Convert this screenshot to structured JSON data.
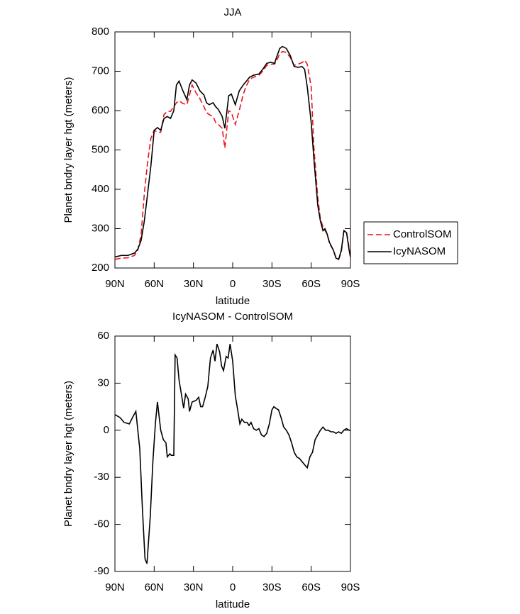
{
  "chart_data": [
    {
      "type": "line",
      "title": "JJA",
      "x_label": "latitude",
      "y_label": "Planet bndry layer hgt (meters)",
      "x": [
        90,
        85,
        80,
        75,
        72.5,
        70,
        67.5,
        65,
        62.5,
        60,
        57.5,
        55,
        52.5,
        50,
        47.5,
        45,
        43,
        41,
        38,
        35,
        33,
        31,
        28,
        25,
        22,
        20,
        18,
        15,
        13,
        11,
        8,
        6,
        3,
        1,
        -2,
        -5,
        -8,
        -10,
        -13,
        -16,
        -20,
        -23,
        -26,
        -29,
        -32,
        -34,
        -36,
        -38,
        -41,
        -44,
        -47,
        -50,
        -53,
        -55,
        -57,
        -60,
        -62,
        -65,
        -67,
        -69,
        -70.5,
        -72,
        -74,
        -77,
        -79,
        -81,
        -83,
        -85,
        -87,
        -89,
        -90
      ],
      "series": [
        {
          "name": "ControlSOM",
          "color": "#e8141b",
          "line_style": "dashed",
          "values": [
            222,
            225,
            226,
            232,
            245,
            285,
            390,
            470,
            530,
            550,
            545,
            545,
            590,
            598,
            598,
            610,
            620,
            625,
            618,
            615,
            640,
            665,
            645,
            630,
            610,
            595,
            590,
            585,
            570,
            565,
            555,
            505,
            600,
            595,
            565,
            600,
            640,
            660,
            680,
            685,
            690,
            700,
            715,
            718,
            718,
            730,
            745,
            750,
            748,
            735,
            715,
            718,
            722,
            728,
            718,
            660,
            510,
            380,
            325,
            305,
            295,
            288,
            262,
            245,
            224,
            222,
            240,
            295,
            292,
            250,
            222
          ]
        },
        {
          "name": "IcyNASOM",
          "color": "#000000",
          "line_style": "solid",
          "values": [
            228,
            232,
            232,
            238,
            248,
            270,
            320,
            390,
            460,
            550,
            557,
            550,
            580,
            585,
            580,
            600,
            665,
            675,
            650,
            628,
            665,
            678,
            670,
            650,
            640,
            620,
            615,
            620,
            610,
            603,
            585,
            555,
            638,
            642,
            615,
            650,
            665,
            673,
            685,
            690,
            693,
            705,
            720,
            723,
            720,
            740,
            758,
            763,
            758,
            740,
            712,
            710,
            712,
            705,
            660,
            570,
            480,
            360,
            320,
            295,
            300,
            288,
            265,
            245,
            225,
            222,
            245,
            295,
            290,
            245,
            228
          ]
        }
      ],
      "xlim": [
        90,
        -90
      ],
      "xticks": [
        {
          "value": 90,
          "label": "90N"
        },
        {
          "value": 60,
          "label": "60N"
        },
        {
          "value": 30,
          "label": "30N"
        },
        0,
        {
          "value": -30,
          "label": "30S"
        },
        {
          "value": -60,
          "label": "60S"
        },
        {
          "value": -90,
          "label": "90S"
        }
      ],
      "ylim": [
        200,
        800
      ],
      "yticks": [
        200,
        300,
        400,
        500,
        600,
        700,
        800
      ],
      "legend": "right"
    },
    {
      "type": "line",
      "title": "IcyNASOM - ControlSOM",
      "x_label": "latitude",
      "y_label": "Planet bndry layer hgt (meters)",
      "x": [
        90,
        86,
        83,
        79,
        76,
        74,
        71,
        69,
        67,
        65.5,
        63,
        61,
        59,
        57.5,
        55,
        53,
        51,
        50,
        48,
        47,
        45,
        44,
        42.5,
        41,
        39,
        37.5,
        36,
        34,
        33,
        31,
        28,
        26,
        24.5,
        23,
        21,
        19,
        17,
        15,
        13.5,
        12,
        10,
        8.5,
        7,
        5,
        3.5,
        2,
        0,
        -2,
        -4,
        -5.5,
        -7,
        -9,
        -11,
        -12.5,
        -14,
        -16,
        -18,
        -20,
        -22,
        -24,
        -26,
        -28,
        -30,
        -31.5,
        -33,
        -35,
        -37,
        -39,
        -41,
        -43,
        -45,
        -47,
        -49,
        -51,
        -53,
        -55,
        -57,
        -59,
        -61,
        -63,
        -65,
        -67,
        -69,
        -71,
        -73,
        -75,
        -77,
        -79,
        -81,
        -83,
        -85,
        -87,
        -89,
        -90
      ],
      "series": [
        {
          "color": "#000000",
          "line_style": "solid",
          "values": [
            10,
            8,
            5,
            4,
            9,
            12,
            -12,
            -50,
            -82,
            -85,
            -55,
            -20,
            5,
            18,
            0,
            -6,
            -8,
            -17,
            -15,
            -16,
            -16,
            48,
            46,
            32,
            22,
            14,
            23,
            20,
            12,
            18,
            19,
            21,
            15,
            15,
            21,
            28,
            46,
            51,
            44,
            55,
            50,
            41,
            38,
            47,
            46,
            55,
            44,
            22,
            12,
            4,
            7,
            5,
            5,
            3,
            5,
            1,
            0,
            1,
            -3,
            -4,
            -2,
            4,
            13,
            15,
            14,
            13,
            8,
            2,
            0,
            -3,
            -8,
            -14,
            -17,
            -18,
            -20,
            -22,
            -24,
            -17,
            -14,
            -6,
            -3,
            0,
            2,
            0,
            0,
            -1,
            -1,
            -2,
            -1,
            -2,
            0,
            1,
            0,
            0
          ]
        }
      ],
      "xlim": [
        90,
        -90
      ],
      "xticks": [
        {
          "value": 90,
          "label": "90N"
        },
        {
          "value": 60,
          "label": "60N"
        },
        {
          "value": 30,
          "label": "30N"
        },
        0,
        {
          "value": -30,
          "label": "30S"
        },
        {
          "value": -60,
          "label": "60S"
        },
        {
          "value": -90,
          "label": "90S"
        }
      ],
      "ylim": [
        -90,
        60
      ],
      "yticks": [
        -90,
        -60,
        -30,
        0,
        30,
        60
      ]
    }
  ]
}
